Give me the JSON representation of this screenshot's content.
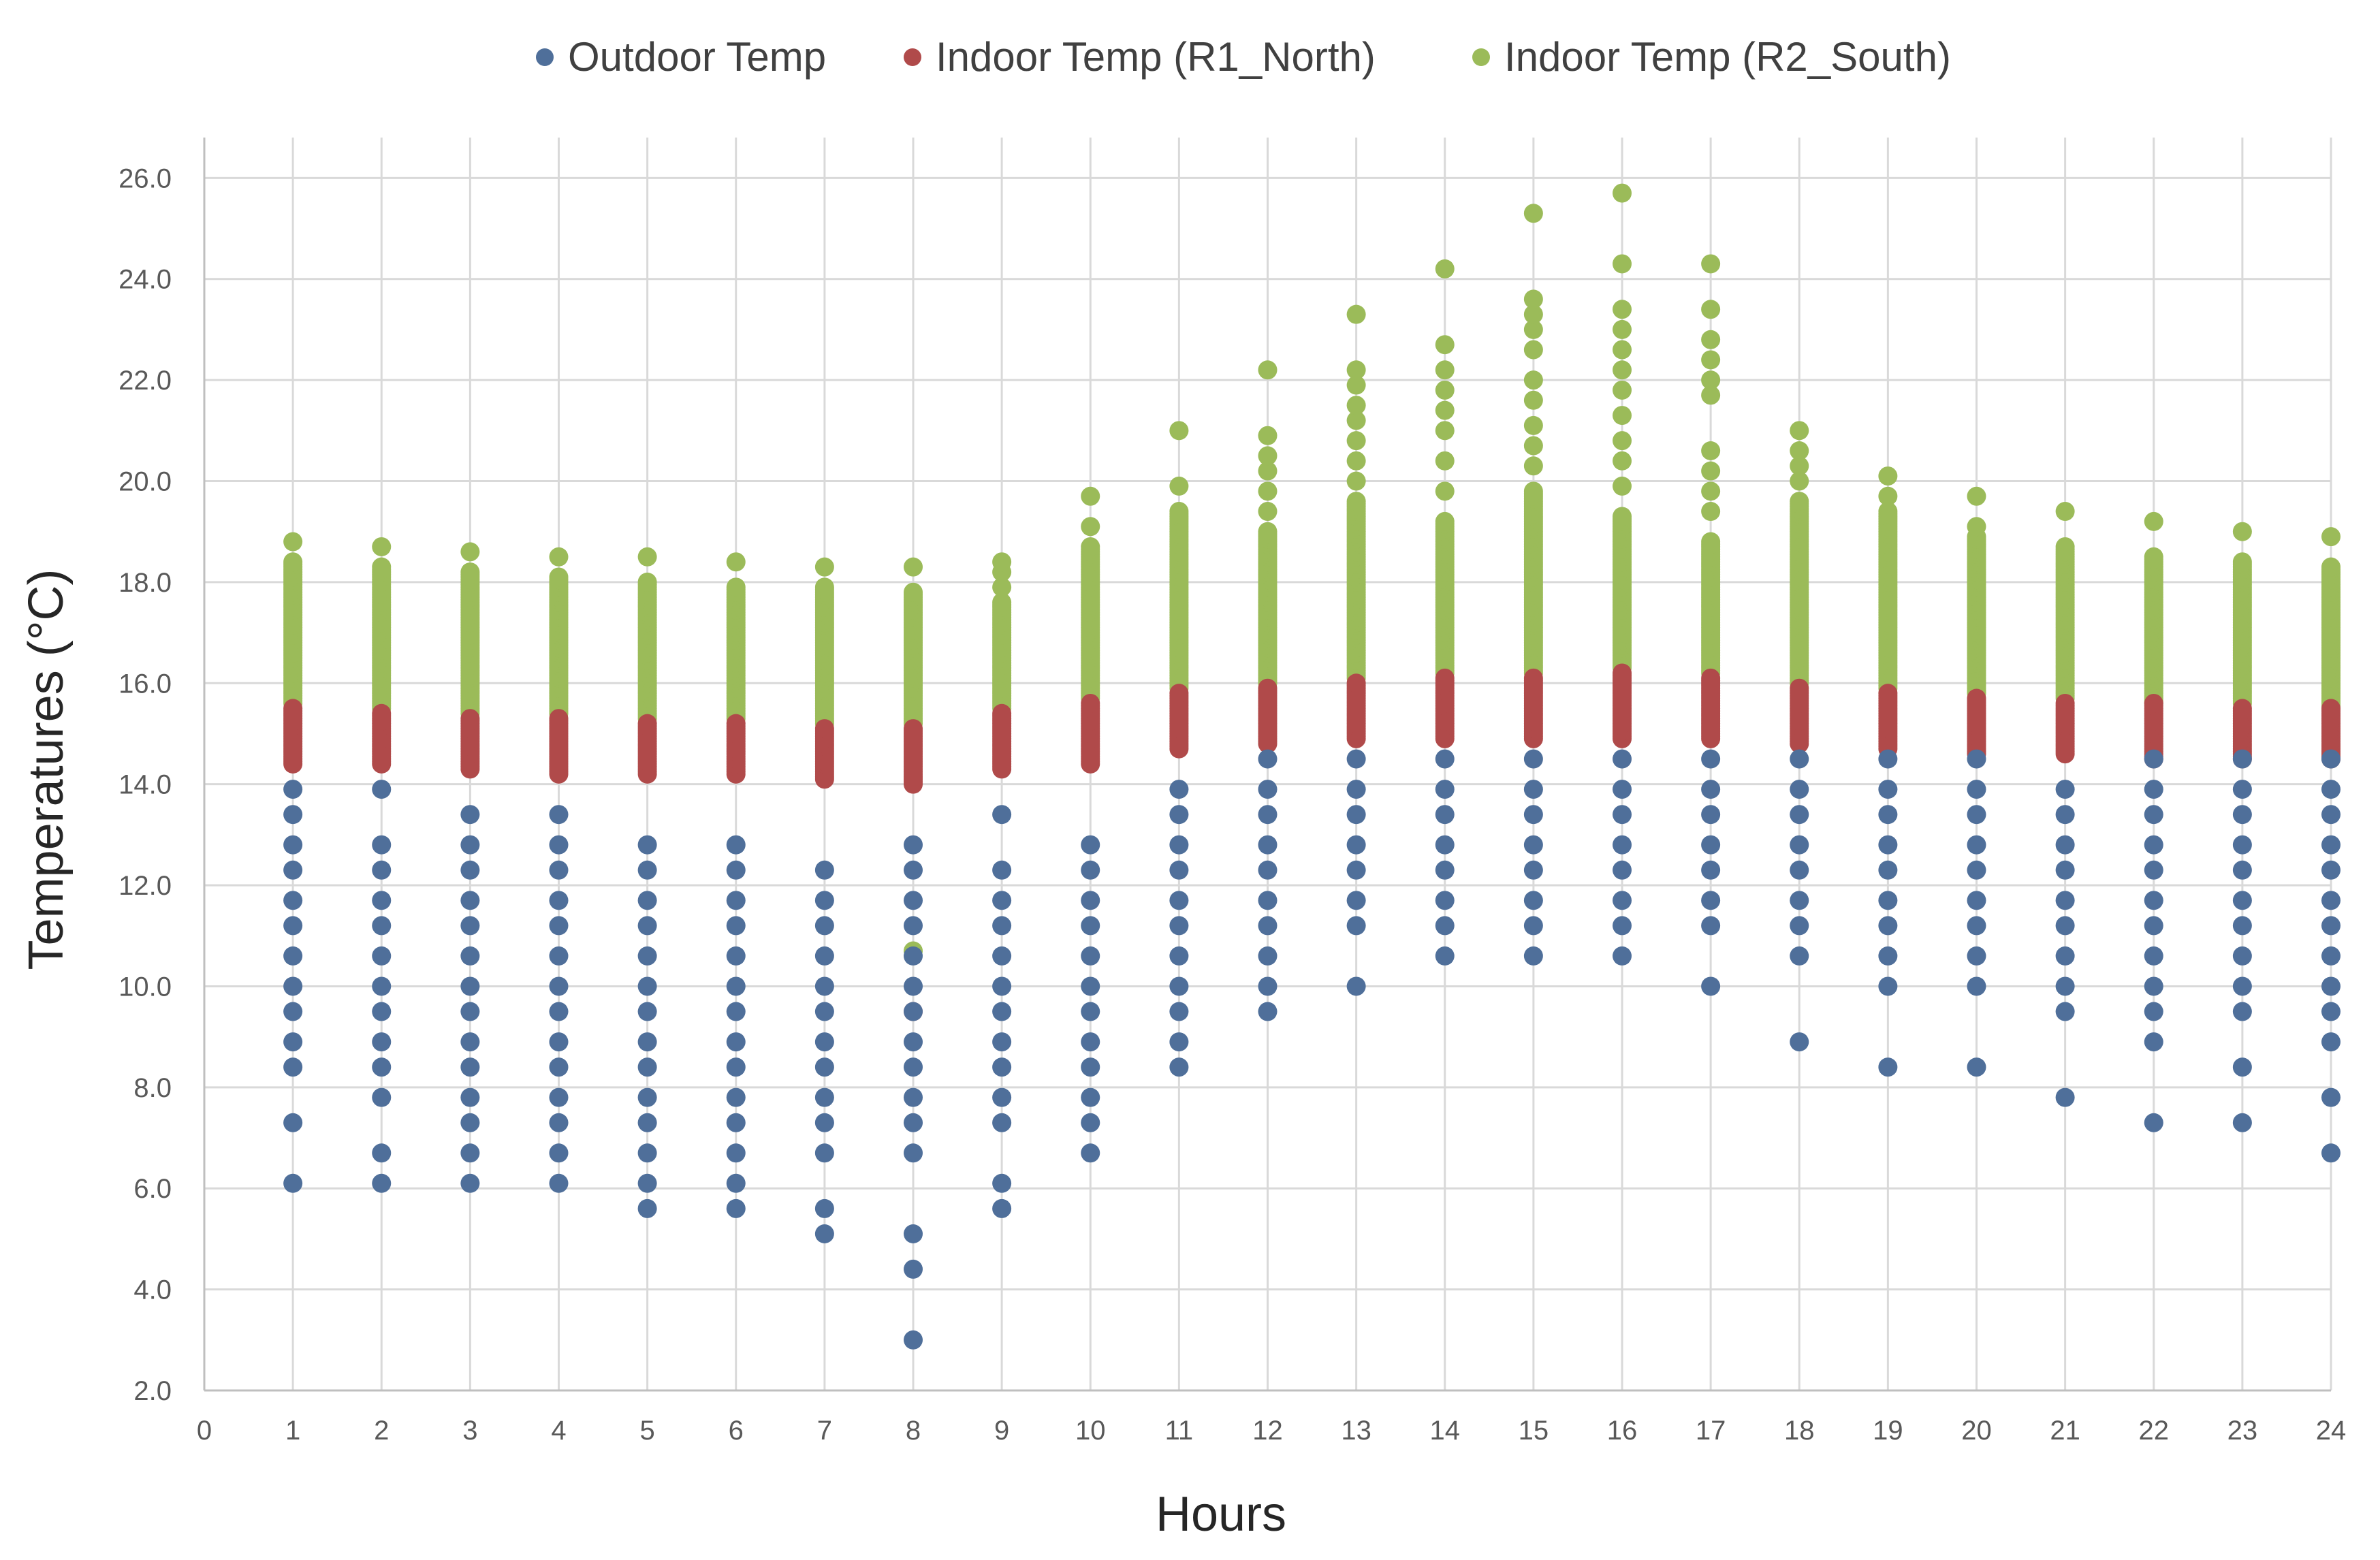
{
  "chart_data": {
    "type": "scatter",
    "title": "",
    "xlabel": "Hours",
    "ylabel": "Temperatures (°C)",
    "xlim": [
      0,
      24
    ],
    "ylim": [
      2,
      26.8
    ],
    "x_ticks": [
      0,
      1,
      2,
      3,
      4,
      5,
      6,
      7,
      8,
      9,
      10,
      11,
      12,
      13,
      14,
      15,
      16,
      17,
      18,
      19,
      20,
      21,
      22,
      23,
      24
    ],
    "y_ticks": [
      "2.0",
      "4.0",
      "6.0",
      "8.0",
      "10.0",
      "12.0",
      "14.0",
      "16.0",
      "18.0",
      "20.0",
      "22.0",
      "24.0",
      "26.0"
    ],
    "grid": true,
    "legend_position": "top",
    "series": [
      {
        "name": "Outdoor Temp",
        "color": "#4F6F9A",
        "columns": [
          {
            "x": 1,
            "values": [
              13.9,
              13.4,
              12.8,
              12.3,
              11.7,
              11.2,
              10.6,
              10.0,
              9.5,
              8.9,
              8.4,
              7.3,
              6.1
            ]
          },
          {
            "x": 2,
            "values": [
              13.9,
              12.8,
              12.3,
              11.7,
              11.2,
              10.6,
              10.0,
              9.5,
              8.9,
              8.4,
              7.8,
              6.7,
              6.1
            ]
          },
          {
            "x": 3,
            "values": [
              13.4,
              12.8,
              12.3,
              11.7,
              11.2,
              10.6,
              10.0,
              9.5,
              8.9,
              8.4,
              7.8,
              7.3,
              6.7,
              6.1
            ]
          },
          {
            "x": 4,
            "values": [
              13.4,
              12.8,
              12.3,
              11.7,
              11.2,
              10.6,
              10.0,
              9.5,
              8.9,
              8.4,
              7.8,
              7.3,
              6.7,
              6.1
            ]
          },
          {
            "x": 5,
            "values": [
              12.8,
              12.3,
              11.7,
              11.2,
              10.6,
              10.0,
              9.5,
              8.9,
              8.4,
              7.8,
              7.3,
              6.7,
              6.1,
              5.6
            ]
          },
          {
            "x": 6,
            "values": [
              12.8,
              12.3,
              11.7,
              11.2,
              10.6,
              10.0,
              9.5,
              8.9,
              8.4,
              7.8,
              7.3,
              6.7,
              6.1,
              5.6
            ]
          },
          {
            "x": 7,
            "values": [
              12.3,
              11.7,
              11.2,
              10.6,
              10.0,
              9.5,
              8.9,
              8.4,
              7.8,
              7.3,
              6.7,
              5.6,
              5.1
            ]
          },
          {
            "x": 8,
            "values": [
              12.8,
              12.3,
              11.7,
              11.2,
              10.6,
              10.0,
              9.5,
              8.9,
              8.4,
              7.8,
              7.3,
              6.7,
              5.1,
              4.4,
              3.0
            ]
          },
          {
            "x": 9,
            "values": [
              13.4,
              12.3,
              11.7,
              11.2,
              10.6,
              10.0,
              9.5,
              8.9,
              8.4,
              7.8,
              7.3,
              6.1,
              5.6
            ]
          },
          {
            "x": 10,
            "values": [
              12.8,
              12.3,
              11.7,
              11.2,
              10.6,
              10.0,
              9.5,
              8.9,
              8.4,
              7.8,
              7.3,
              6.7
            ]
          },
          {
            "x": 11,
            "values": [
              13.9,
              13.4,
              12.8,
              12.3,
              11.7,
              11.2,
              10.6,
              10.0,
              9.5,
              8.9,
              8.4
            ]
          },
          {
            "x": 12,
            "values": [
              14.5,
              13.9,
              13.4,
              12.8,
              12.3,
              11.7,
              11.2,
              10.6,
              10.0,
              9.5
            ]
          },
          {
            "x": 13,
            "values": [
              14.5,
              13.9,
              13.4,
              12.8,
              12.3,
              11.7,
              11.2,
              10.0
            ]
          },
          {
            "x": 14,
            "values": [
              14.5,
              13.9,
              13.4,
              12.8,
              12.3,
              11.7,
              11.2,
              10.6
            ]
          },
          {
            "x": 15,
            "values": [
              14.5,
              13.9,
              13.4,
              12.8,
              12.3,
              11.7,
              11.2,
              10.6
            ]
          },
          {
            "x": 16,
            "values": [
              14.5,
              13.9,
              13.4,
              12.8,
              12.3,
              11.7,
              11.2,
              10.6
            ]
          },
          {
            "x": 17,
            "values": [
              14.5,
              13.9,
              13.4,
              12.8,
              12.3,
              11.7,
              11.2,
              10.0
            ]
          },
          {
            "x": 18,
            "values": [
              14.5,
              13.9,
              13.4,
              12.8,
              12.3,
              11.7,
              11.2,
              10.6,
              8.9
            ]
          },
          {
            "x": 19,
            "values": [
              14.5,
              13.9,
              13.4,
              12.8,
              12.3,
              11.7,
              11.2,
              10.6,
              10.0,
              8.4
            ]
          },
          {
            "x": 20,
            "values": [
              14.5,
              13.9,
              13.4,
              12.8,
              12.3,
              11.7,
              11.2,
              10.6,
              10.0,
              8.4
            ]
          },
          {
            "x": 21,
            "values": [
              13.9,
              13.4,
              12.8,
              12.3,
              11.7,
              11.2,
              10.6,
              10.0,
              9.5,
              7.8
            ]
          },
          {
            "x": 22,
            "values": [
              14.5,
              13.9,
              13.4,
              12.8,
              12.3,
              11.7,
              11.2,
              10.6,
              10.0,
              9.5,
              8.9,
              7.3
            ]
          },
          {
            "x": 23,
            "values": [
              14.5,
              13.9,
              13.4,
              12.8,
              12.3,
              11.7,
              11.2,
              10.6,
              10.0,
              9.5,
              8.4,
              7.3
            ]
          },
          {
            "x": 24,
            "values": [
              14.5,
              13.9,
              13.4,
              12.8,
              12.3,
              11.7,
              11.2,
              10.6,
              10.0,
              9.5,
              8.9,
              7.8,
              6.7
            ]
          }
        ]
      },
      {
        "name": "Indoor Temp (R1_North)",
        "color": "#B04A4A",
        "columns": [
          {
            "x": 1,
            "min": 14.4,
            "max": 15.5
          },
          {
            "x": 2,
            "min": 14.4,
            "max": 15.4
          },
          {
            "x": 3,
            "min": 14.3,
            "max": 15.3
          },
          {
            "x": 4,
            "min": 14.2,
            "max": 15.3
          },
          {
            "x": 5,
            "min": 14.2,
            "max": 15.2
          },
          {
            "x": 6,
            "min": 14.2,
            "max": 15.2
          },
          {
            "x": 7,
            "min": 14.1,
            "max": 15.1
          },
          {
            "x": 8,
            "min": 14.0,
            "max": 15.1,
            "extra": [
              9.5
            ]
          },
          {
            "x": 9,
            "min": 14.3,
            "max": 15.4
          },
          {
            "x": 10,
            "min": 14.4,
            "max": 15.6
          },
          {
            "x": 11,
            "min": 14.7,
            "max": 15.8
          },
          {
            "x": 12,
            "min": 14.8,
            "max": 15.9
          },
          {
            "x": 13,
            "min": 14.9,
            "max": 16.0
          },
          {
            "x": 14,
            "min": 14.9,
            "max": 16.1
          },
          {
            "x": 15,
            "min": 14.9,
            "max": 16.1
          },
          {
            "x": 16,
            "min": 14.9,
            "max": 16.2
          },
          {
            "x": 17,
            "min": 14.9,
            "max": 16.1
          },
          {
            "x": 18,
            "min": 14.8,
            "max": 15.9
          },
          {
            "x": 19,
            "min": 14.7,
            "max": 15.8
          },
          {
            "x": 20,
            "min": 14.6,
            "max": 15.7
          },
          {
            "x": 21,
            "min": 14.6,
            "max": 15.6
          },
          {
            "x": 22,
            "min": 14.5,
            "max": 15.6
          },
          {
            "x": 23,
            "min": 14.5,
            "max": 15.5
          },
          {
            "x": 24,
            "min": 14.5,
            "max": 15.5
          }
        ]
      },
      {
        "name": "Indoor Temp (R2_South)",
        "color": "#9BBB59",
        "columns": [
          {
            "x": 1,
            "min": 15.6,
            "max": 18.4,
            "extra": [
              18.8
            ]
          },
          {
            "x": 2,
            "min": 15.5,
            "max": 18.3,
            "extra": [
              18.7
            ]
          },
          {
            "x": 3,
            "min": 15.4,
            "max": 18.2,
            "extra": [
              18.6
            ]
          },
          {
            "x": 4,
            "min": 15.4,
            "max": 18.1,
            "extra": [
              18.5
            ]
          },
          {
            "x": 5,
            "min": 15.3,
            "max": 18.0,
            "extra": [
              18.5
            ]
          },
          {
            "x": 6,
            "min": 15.3,
            "max": 17.9,
            "extra": [
              18.4
            ]
          },
          {
            "x": 7,
            "min": 15.2,
            "max": 17.9,
            "extra": [
              18.3
            ]
          },
          {
            "x": 8,
            "min": 15.2,
            "max": 17.8,
            "extra": [
              18.3,
              10.7
            ]
          },
          {
            "x": 9,
            "min": 15.5,
            "max": 17.6,
            "extra": [
              17.9,
              18.2,
              18.4
            ]
          },
          {
            "x": 10,
            "min": 15.7,
            "max": 18.7,
            "extra": [
              19.1,
              19.7
            ]
          },
          {
            "x": 11,
            "min": 15.9,
            "max": 19.4,
            "extra": [
              19.9,
              21.0
            ]
          },
          {
            "x": 12,
            "min": 16.0,
            "max": 19.0,
            "extra": [
              19.4,
              19.8,
              20.2,
              20.5,
              20.9,
              22.2
            ]
          },
          {
            "x": 13,
            "min": 16.1,
            "max": 19.6,
            "extra": [
              20.0,
              20.4,
              20.8,
              21.2,
              21.5,
              21.9,
              22.2,
              23.3
            ]
          },
          {
            "x": 14,
            "min": 16.2,
            "max": 19.2,
            "extra": [
              19.8,
              20.4,
              21.0,
              21.4,
              21.8,
              22.2,
              22.7,
              24.2
            ]
          },
          {
            "x": 15,
            "min": 16.2,
            "max": 19.8,
            "extra": [
              20.3,
              20.7,
              21.1,
              21.6,
              22.0,
              22.6,
              23.0,
              23.3,
              23.6,
              25.3
            ]
          },
          {
            "x": 16,
            "min": 16.3,
            "max": 19.3,
            "extra": [
              19.9,
              20.4,
              20.8,
              21.3,
              21.8,
              22.2,
              22.6,
              23.0,
              23.4,
              24.3,
              25.7
            ]
          },
          {
            "x": 17,
            "min": 16.2,
            "max": 18.8,
            "extra": [
              19.4,
              19.8,
              20.2,
              20.6,
              21.7,
              22.0,
              22.4,
              22.8,
              23.4,
              24.3
            ]
          },
          {
            "x": 18,
            "min": 16.0,
            "max": 19.6,
            "extra": [
              20.0,
              20.3,
              20.6,
              21.0
            ]
          },
          {
            "x": 19,
            "min": 15.9,
            "max": 19.4,
            "extra": [
              19.7,
              20.1
            ]
          },
          {
            "x": 20,
            "min": 15.8,
            "max": 18.9,
            "extra": [
              19.1,
              19.7
            ]
          },
          {
            "x": 21,
            "min": 15.7,
            "max": 18.7,
            "extra": [
              19.4
            ]
          },
          {
            "x": 22,
            "min": 15.6,
            "max": 18.5,
            "extra": [
              19.2
            ]
          },
          {
            "x": 23,
            "min": 15.6,
            "max": 18.4,
            "extra": [
              19.0
            ]
          },
          {
            "x": 24,
            "min": 15.5,
            "max": 18.3,
            "extra": [
              18.9
            ]
          }
        ]
      }
    ]
  }
}
